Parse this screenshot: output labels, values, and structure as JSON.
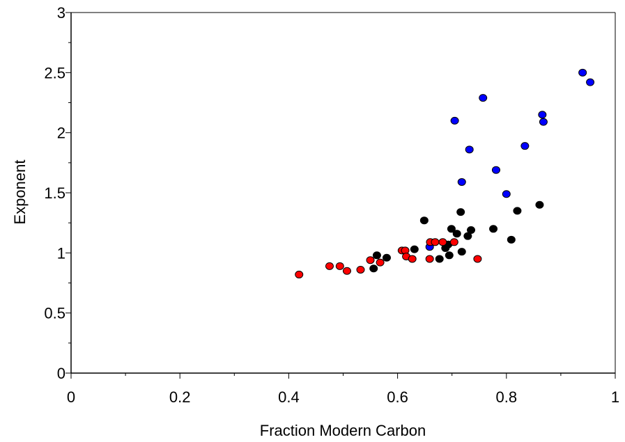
{
  "chart_data": {
    "type": "scatter",
    "title": "",
    "xlabel": "Fraction  Modern Carbon",
    "ylabel": "Exponent",
    "xlim": [
      0,
      1
    ],
    "ylim": [
      0,
      3
    ],
    "x_ticks": [
      "0",
      "0.2",
      "0.4",
      "0.6",
      "0.8",
      "1"
    ],
    "y_ticks": [
      "0",
      "0.5",
      "1",
      "1.5",
      "2",
      "2.5",
      "3"
    ],
    "grid": false,
    "legend": "none",
    "series": [
      {
        "color": "#0000ff",
        "points": [
          [
            0.659,
            1.05
          ],
          [
            0.705,
            2.1
          ],
          [
            0.718,
            1.59
          ],
          [
            0.732,
            1.86
          ],
          [
            0.757,
            2.29
          ],
          [
            0.781,
            1.69
          ],
          [
            0.8,
            1.49
          ],
          [
            0.834,
            1.89
          ],
          [
            0.866,
            2.15
          ],
          [
            0.868,
            2.09
          ],
          [
            0.94,
            2.5
          ],
          [
            0.954,
            2.42
          ]
        ]
      },
      {
        "color": "#000000",
        "points": [
          [
            0.556,
            0.87
          ],
          [
            0.562,
            0.98
          ],
          [
            0.58,
            0.96
          ],
          [
            0.631,
            1.03
          ],
          [
            0.649,
            1.27
          ],
          [
            0.677,
            0.95
          ],
          [
            0.688,
            1.04
          ],
          [
            0.693,
            1.07
          ],
          [
            0.695,
            0.98
          ],
          [
            0.699,
            1.2
          ],
          [
            0.709,
            1.16
          ],
          [
            0.716,
            1.34
          ],
          [
            0.718,
            1.01
          ],
          [
            0.729,
            1.14
          ],
          [
            0.735,
            1.19
          ],
          [
            0.776,
            1.2
          ],
          [
            0.809,
            1.11
          ],
          [
            0.82,
            1.35
          ],
          [
            0.861,
            1.4
          ]
        ]
      },
      {
        "color": "#ff0000",
        "points": [
          [
            0.419,
            0.82
          ],
          [
            0.475,
            0.89
          ],
          [
            0.494,
            0.89
          ],
          [
            0.507,
            0.85
          ],
          [
            0.532,
            0.86
          ],
          [
            0.55,
            0.94
          ],
          [
            0.568,
            0.92
          ],
          [
            0.608,
            1.02
          ],
          [
            0.614,
            1.02
          ],
          [
            0.616,
            0.97
          ],
          [
            0.627,
            0.95
          ],
          [
            0.659,
            0.95
          ],
          [
            0.66,
            1.09
          ],
          [
            0.669,
            1.09
          ],
          [
            0.683,
            1.09
          ],
          [
            0.704,
            1.09
          ],
          [
            0.747,
            0.95
          ]
        ]
      }
    ]
  }
}
